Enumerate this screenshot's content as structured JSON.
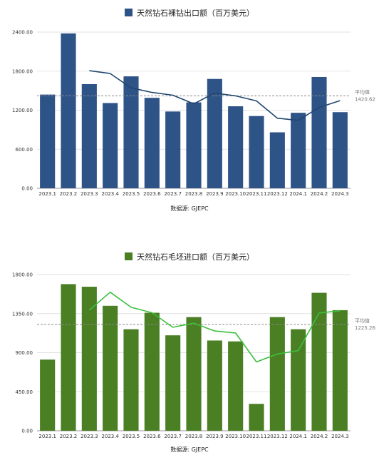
{
  "chart_data": [
    {
      "type": "bar",
      "title": "天然钻石裸钻出口额（百万美元）",
      "categories": [
        "2023.1",
        "2023.2",
        "2023.3",
        "2023.4",
        "2023.5",
        "2023.6",
        "2023.7",
        "2023.8",
        "2023.9",
        "2023.10",
        "2023.11",
        "2023.12",
        "2024.1",
        "2024.2",
        "2024.3"
      ],
      "series": [
        {
          "name": "天然钻石裸钻出口额（百万美元）",
          "values": [
            1440,
            2380,
            1600,
            1310,
            1720,
            1390,
            1180,
            1320,
            1680,
            1260,
            1110,
            860,
            1160,
            1710,
            1170
          ],
          "color": "#2e5387"
        },
        {
          "values": [
            null,
            null,
            1807,
            1763,
            1543,
            1473,
            1430,
            1297,
            1463,
            1420,
            1343,
            1077,
            1043,
            1243,
            1347
          ],
          "color": "#21476f"
        }
      ],
      "average": {
        "label": "平均值",
        "value": "1420.62"
      },
      "yticks": [
        "0.00",
        "600.00",
        "1200.00",
        "1800.00",
        "2400.00"
      ],
      "ylim": [
        0,
        2400
      ],
      "source": "数据源: GJEPC",
      "accent": "#2e5387"
    },
    {
      "type": "bar",
      "title": "天然钻石毛坯进口额（百万美元）",
      "categories": [
        "2023.1",
        "2023.2",
        "2023.3",
        "2023.4",
        "2023.5",
        "2023.6",
        "2023.7",
        "2023.8",
        "2023.9",
        "2023.10",
        "2023.11",
        "2023.12",
        "2024.1",
        "2024.2",
        "2024.3"
      ],
      "series": [
        {
          "name": "天然钻石毛坯进口额（百万美元）",
          "values": [
            820,
            1690,
            1660,
            1440,
            1170,
            1360,
            1100,
            1310,
            1040,
            1030,
            310,
            1310,
            1170,
            1590,
            1390
          ],
          "color": "#4a7f24"
        },
        {
          "values": [
            null,
            null,
            1390,
            1597,
            1423,
            1360,
            1193,
            1240,
            1150,
            1127,
            793,
            884,
            924,
            1357,
            1383
          ],
          "color": "#3cbf3c"
        }
      ],
      "average": {
        "label": "平均值",
        "value": "1225.26"
      },
      "yticks": [
        "0.00",
        "450.00",
        "900.00",
        "1350.00",
        "1800.00"
      ],
      "ylim": [
        0,
        1800
      ],
      "source": "数据源: GJEPC",
      "accent": "#4a7f24"
    }
  ]
}
